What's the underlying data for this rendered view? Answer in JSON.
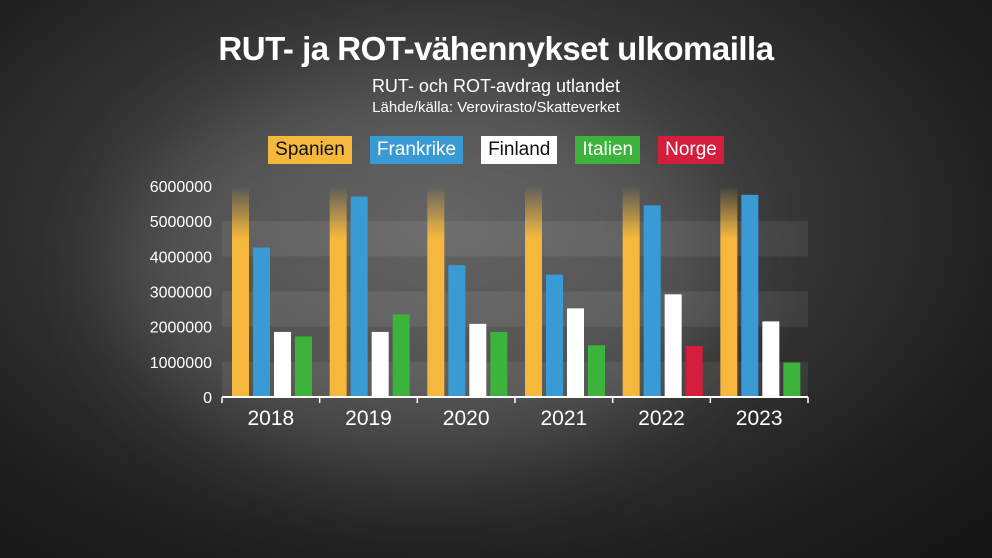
{
  "title": "RUT- ja ROT-vähennykset ulkomailla",
  "subtitle": "RUT- och ROT-avdrag utlandet",
  "source": "Lähde/källa: Verovirasto/Skatteverket",
  "colors": {
    "Spanien": "#f5b83d",
    "Frankrike": "#3a9ad4",
    "Finland": "#ffffff",
    "Italien": "#3cb43c",
    "Norge": "#d41e3c"
  },
  "chart_data": {
    "type": "bar",
    "categories": [
      "2018",
      "2019",
      "2020",
      "2021",
      "2022",
      "2023"
    ],
    "series": [
      {
        "name": "Spanien",
        "values": [
          6000000,
          6000000,
          6000000,
          6000000,
          6000000,
          6000000
        ]
      },
      {
        "name": "Frankrike",
        "values": [
          4250000,
          5700000,
          3750000,
          3480000,
          5450000,
          5750000
        ]
      },
      {
        "name": "Finland",
        "values": [
          1850000,
          1850000,
          2080000,
          2520000,
          2920000,
          2150000
        ]
      },
      {
        "name": "Italien",
        "values": [
          1720000,
          2350000,
          1850000,
          1470000,
          null,
          980000
        ]
      },
      {
        "name": "Norge",
        "values": [
          null,
          null,
          null,
          null,
          1450000,
          null
        ]
      }
    ],
    "ylim": [
      0,
      6000000
    ],
    "yticks": [
      0,
      1000000,
      2000000,
      3000000,
      4000000,
      5000000,
      6000000
    ],
    "ytick_labels": [
      "0",
      "1000000",
      "2000000",
      "3000000",
      "4000000",
      "5000000",
      "6000000"
    ],
    "legend": [
      "Spanien",
      "Frankrike",
      "Finland",
      "Italien",
      "Norge"
    ],
    "legend_placement": "top-center"
  }
}
